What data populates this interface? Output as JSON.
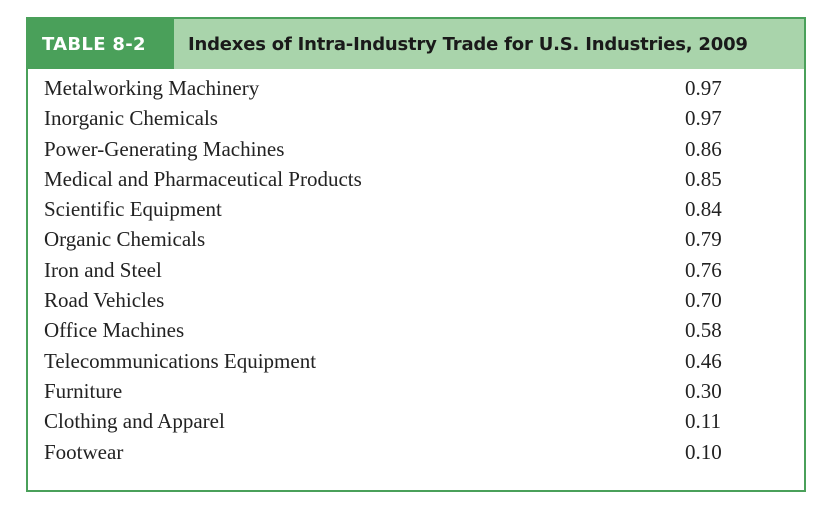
{
  "table": {
    "label": "TABLE 8-2",
    "title": "Indexes of Intra-Industry Trade for U.S. Industries, 2009",
    "rows": [
      {
        "industry": "Metalworking Machinery",
        "index": "0.97"
      },
      {
        "industry": "Inorganic Chemicals",
        "index": "0.97"
      },
      {
        "industry": "Power-Generating Machines",
        "index": "0.86"
      },
      {
        "industry": "Medical and Pharmaceutical Products",
        "index": "0.85"
      },
      {
        "industry": "Scientific Equipment",
        "index": "0.84"
      },
      {
        "industry": "Organic Chemicals",
        "index": "0.79"
      },
      {
        "industry": "Iron and Steel",
        "index": "0.76"
      },
      {
        "industry": "Road Vehicles",
        "index": "0.70"
      },
      {
        "industry": "Office Machines",
        "index": "0.58"
      },
      {
        "industry": "Telecommunications Equipment",
        "index": "0.46"
      },
      {
        "industry": "Furniture",
        "index": "0.30"
      },
      {
        "industry": "Clothing and Apparel",
        "index": "0.11"
      },
      {
        "industry": "Footwear",
        "index": "0.10"
      }
    ]
  },
  "colors": {
    "border": "#4aa05a",
    "label_bg": "#4aa05a",
    "header_bg": "#a9d4ab"
  }
}
